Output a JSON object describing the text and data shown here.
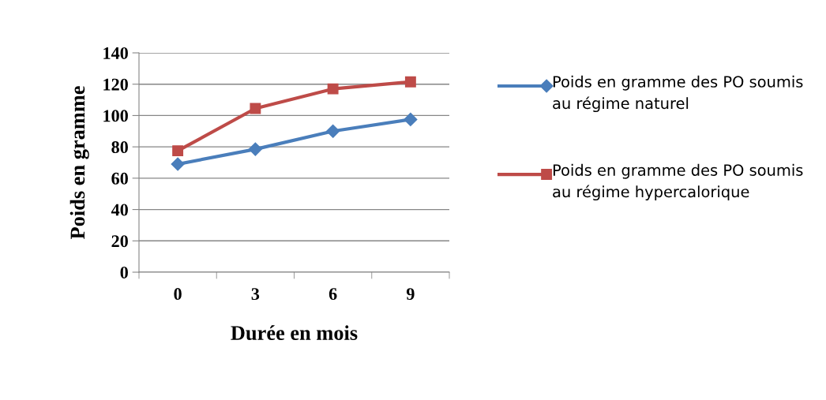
{
  "chart_data": {
    "type": "line",
    "xlabel": "Durée en mois",
    "ylabel": "Poids en gramme",
    "categories": [
      "0",
      "3",
      "6",
      "9"
    ],
    "series": [
      {
        "name": "Poids en gramme des PO soumis au régime naturel",
        "color": "#4a7ebb",
        "marker": "diamond",
        "values": [
          69,
          78.5,
          90,
          97.5
        ]
      },
      {
        "name": "Poids en gramme des PO soumis au régime hypercalorique",
        "color": "#be4b48",
        "marker": "square",
        "values": [
          77.5,
          104.5,
          117,
          121.5
        ]
      }
    ],
    "ylim": [
      0,
      140
    ],
    "yticks": [
      0,
      20,
      40,
      60,
      80,
      100,
      120,
      140
    ],
    "grid": "y",
    "legend": "right",
    "line_style": "solid"
  }
}
